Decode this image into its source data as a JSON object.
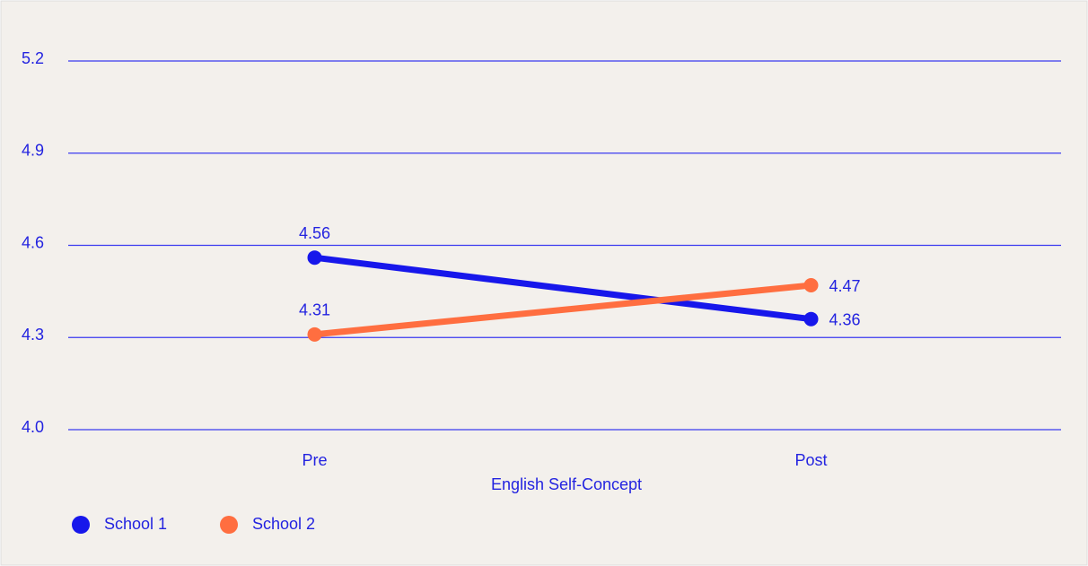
{
  "chart_data": {
    "type": "line",
    "x_label": "English Self-Concept",
    "categories": [
      "Pre",
      "Post"
    ],
    "series": [
      {
        "name": "School 1",
        "color": "#1717eb",
        "values": [
          4.56,
          4.36
        ]
      },
      {
        "name": "School 2",
        "color": "#ff6e40",
        "values": [
          4.31,
          4.47
        ]
      }
    ],
    "ylim": [
      4,
      5.2
    ],
    "yticks": [
      {
        "value": 4,
        "label": "4.0"
      },
      4.3,
      4.6,
      4.9,
      5.2
    ],
    "grid": true,
    "legend": "bottom-left"
  }
}
